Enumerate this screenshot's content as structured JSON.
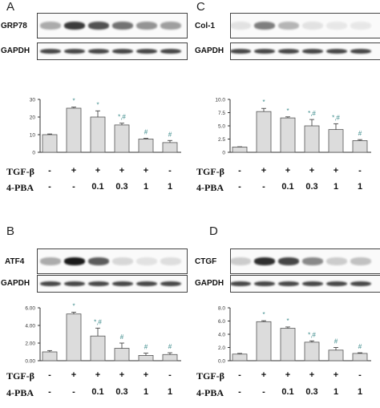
{
  "panel_letters": [
    "A",
    "B",
    "C",
    "D"
  ],
  "blot_labels": {
    "A": "GRP78",
    "B": "ATF4",
    "C": "Col-1",
    "D": "CTGF",
    "loading": "GAPDH"
  },
  "conditions": {
    "tgf_label": "TGF-β",
    "pba_label": "4-PBA",
    "tgf": [
      "-",
      "+",
      "+",
      "+",
      "+",
      "-"
    ],
    "pba": [
      "-",
      "-",
      "0.1",
      "0.3",
      "1",
      "1"
    ]
  },
  "band_intensity": {
    "A": [
      0.35,
      0.85,
      0.75,
      0.6,
      0.45,
      0.4
    ],
    "B": [
      0.35,
      1.0,
      0.7,
      0.15,
      0.1,
      0.12
    ],
    "C": [
      0.1,
      0.55,
      0.3,
      0.1,
      0.08,
      0.08
    ],
    "D": [
      0.2,
      0.9,
      0.8,
      0.5,
      0.2,
      0.25
    ],
    "loading": [
      0.8,
      0.8,
      0.8,
      0.8,
      0.8,
      0.8
    ]
  },
  "colors": {
    "bar_fill": "#dcdcdc",
    "bar_stroke": "#555555",
    "marker": "#3a8a8a",
    "band": "#1a1a1a"
  },
  "chart_data": [
    {
      "panel": "A",
      "type": "bar",
      "categories": [
        "1",
        "2",
        "3",
        "4",
        "5",
        "6"
      ],
      "values": [
        10,
        25,
        20,
        15.5,
        7.5,
        5.5
      ],
      "errors": [
        0.4,
        0.6,
        3.5,
        1.0,
        0.4,
        1.2
      ],
      "ylim": [
        0,
        30
      ],
      "yticks": [
        0,
        10,
        20,
        30
      ],
      "ytick_labels": [
        "0",
        "10",
        "20",
        "30"
      ],
      "markers": [
        "",
        "*",
        "*",
        "*,#",
        "#",
        "#"
      ],
      "xlabel": "",
      "ylabel": "",
      "title": ""
    },
    {
      "panel": "C",
      "type": "bar",
      "categories": [
        "1",
        "2",
        "3",
        "4",
        "5",
        "6"
      ],
      "values": [
        1,
        7.7,
        6.5,
        5.0,
        4.3,
        2.2
      ],
      "errors": [
        0.05,
        0.6,
        0.2,
        1.2,
        1.1,
        0.2
      ],
      "ylim": [
        0,
        10
      ],
      "yticks": [
        0,
        2.5,
        5,
        7.5,
        10
      ],
      "ytick_labels": [
        "0",
        "2.5",
        "5.0",
        "7.5",
        "10.0"
      ],
      "markers": [
        "",
        "*",
        "*",
        "*,#",
        "*,#",
        "#"
      ],
      "xlabel": "",
      "ylabel": "",
      "title": ""
    },
    {
      "panel": "B",
      "type": "bar",
      "categories": [
        "1",
        "2",
        "3",
        "4",
        "5",
        "6"
      ],
      "values": [
        1.0,
        5.3,
        2.8,
        1.4,
        0.6,
        0.7
      ],
      "errors": [
        0.15,
        0.2,
        0.9,
        0.6,
        0.25,
        0.2
      ],
      "ylim": [
        0,
        6
      ],
      "yticks": [
        0,
        2,
        4,
        6
      ],
      "ytick_labels": [
        "0.00",
        "2.00",
        "4.00",
        "6.00"
      ],
      "markers": [
        "",
        "*",
        "*,#",
        "#",
        "#",
        "#"
      ],
      "xlabel": "",
      "ylabel": "",
      "title": ""
    },
    {
      "panel": "D",
      "type": "bar",
      "categories": [
        "1",
        "2",
        "3",
        "4",
        "5",
        "6"
      ],
      "values": [
        1.0,
        5.9,
        4.9,
        2.8,
        1.6,
        1.1
      ],
      "errors": [
        0.1,
        0.15,
        0.2,
        0.2,
        0.4,
        0.1
      ],
      "ylim": [
        0,
        8
      ],
      "yticks": [
        0,
        2,
        4,
        6,
        8
      ],
      "ytick_labels": [
        "0.0",
        "2.0",
        "4.0",
        "6.0",
        "8.0"
      ],
      "markers": [
        "",
        "*",
        "*",
        "*,#",
        "#",
        "#"
      ],
      "xlabel": "",
      "ylabel": "",
      "title": ""
    }
  ]
}
